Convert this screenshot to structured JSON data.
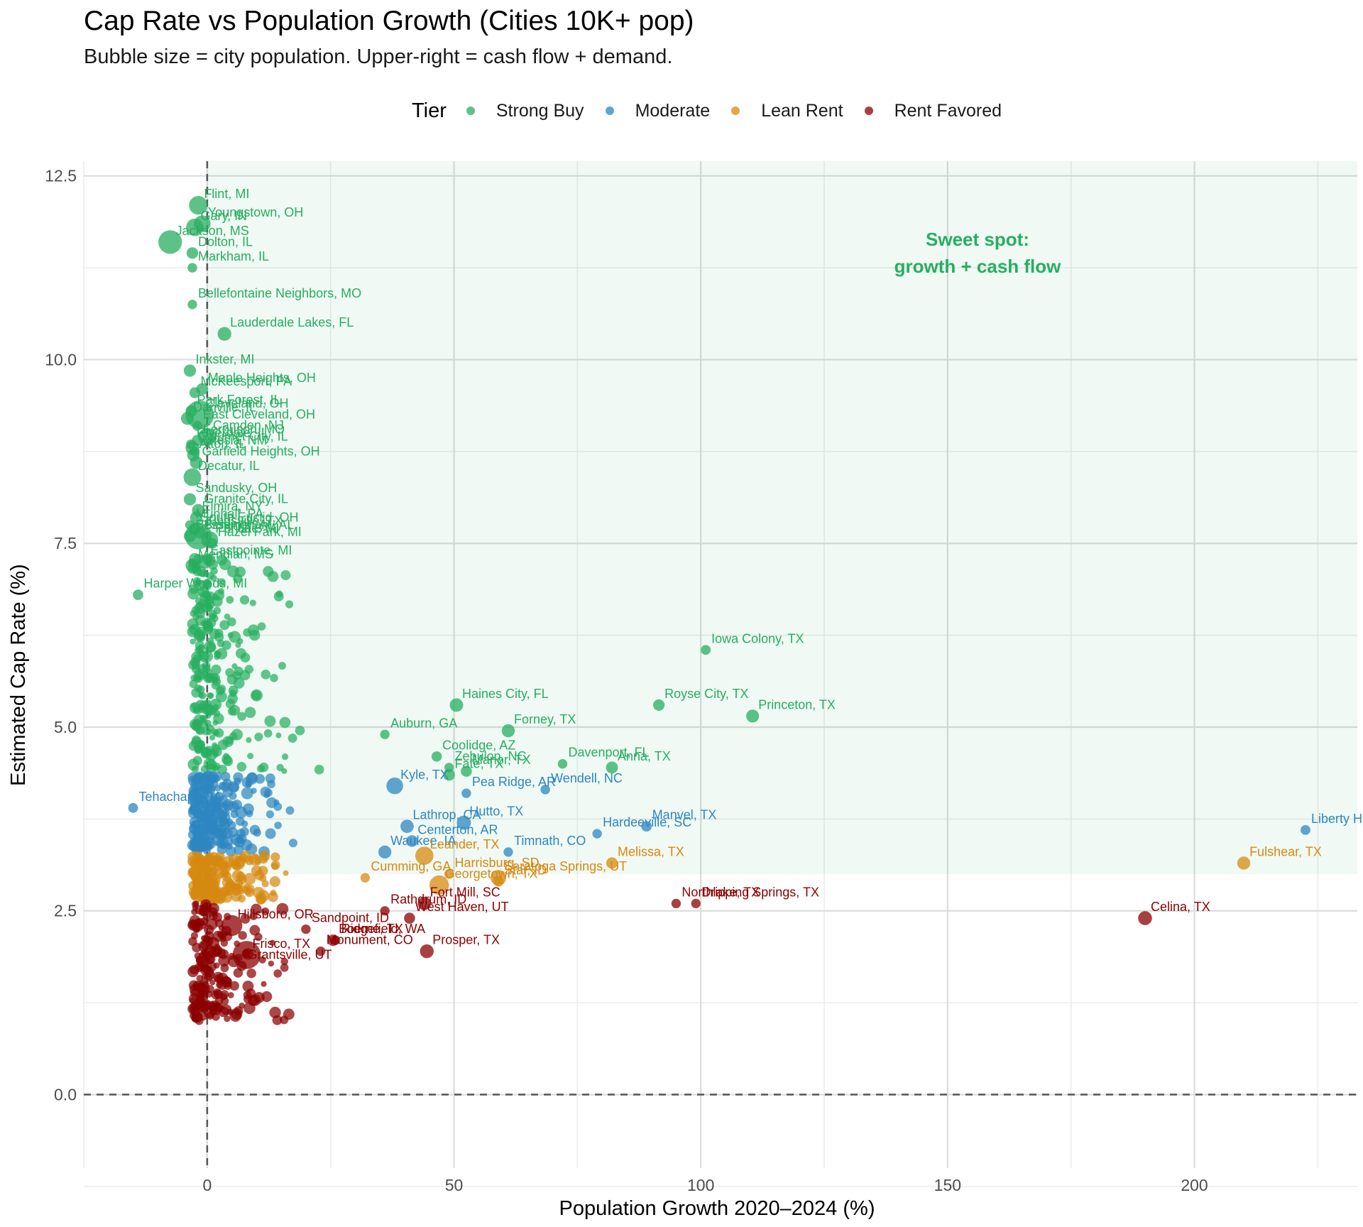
{
  "chart_data": {
    "type": "scatter",
    "title": "Cap Rate vs Population Growth (Cities 10K+ pop)",
    "subtitle": "Bubble size = city population. Upper-right = cash flow + demand.",
    "xlabel": "Population Growth 2020–2024 (%)",
    "ylabel": "Estimated Cap Rate (%)",
    "xlim": [
      -25,
      233
    ],
    "ylim": [
      -1.0,
      12.7
    ],
    "x_ticks": [
      0,
      50,
      100,
      150,
      200
    ],
    "y_ticks": [
      0.0,
      2.5,
      5.0,
      7.5,
      10.0,
      12.5
    ],
    "y_tick_labels": [
      "0.0",
      "2.5",
      "5.0",
      "7.5",
      "10.0",
      "12.5"
    ],
    "grid": true,
    "legend_position": "top",
    "legend_title": "Tier",
    "reference_lines": [
      {
        "axis": "x",
        "value": 0,
        "style": "dashed"
      },
      {
        "axis": "y",
        "value": 0,
        "style": "dashed"
      }
    ],
    "highlight_region": {
      "x": [
        0,
        233
      ],
      "y": [
        3.0,
        12.7
      ],
      "label": "Sweet spot:\ngrowth + cash flow",
      "color": "#27ae60"
    },
    "colors": {
      "Strong Buy": "#27ae60",
      "Moderate": "#2e86c1",
      "Lean Rent": "#d68910",
      "Rent Favored": "#8b0000"
    },
    "series": [
      {
        "name": "Strong Buy",
        "points": [
          {
            "label": "Flint, MI",
            "x": -1.8,
            "y": 12.1,
            "pop": 80000
          },
          {
            "label": "Youngstown, OH",
            "x": -1.0,
            "y": 11.85,
            "pop": 60000
          },
          {
            "label": "Gary, IN",
            "x": -2.5,
            "y": 11.8,
            "pop": 68000
          },
          {
            "label": "Jackson, MS",
            "x": -7.5,
            "y": 11.6,
            "pop": 145000
          },
          {
            "label": "Dolton, IL",
            "x": -3.0,
            "y": 11.45,
            "pop": 21000
          },
          {
            "label": "Markham, IL",
            "x": -3.0,
            "y": 11.25,
            "pop": 11000
          },
          {
            "label": "Bellefontaine Neighbors, MO",
            "x": -3.0,
            "y": 10.75,
            "pop": 10500
          },
          {
            "label": "Lauderdale Lakes, FL",
            "x": 3.5,
            "y": 10.35,
            "pop": 35000
          },
          {
            "label": "Inkster, MI",
            "x": -3.5,
            "y": 9.85,
            "pop": 25000
          },
          {
            "label": "McKeesport, PA",
            "x": -2.5,
            "y": 9.55,
            "pop": 17000
          },
          {
            "label": "Maple Heights, OH",
            "x": -1.0,
            "y": 9.6,
            "pop": 22000
          },
          {
            "label": "Park Forest, IL",
            "x": -3.2,
            "y": 9.3,
            "pop": 21000
          },
          {
            "label": "Cleveland, OH",
            "x": -1.5,
            "y": 9.25,
            "pop": 370000
          },
          {
            "label": "Danville, IL",
            "x": -4.0,
            "y": 9.2,
            "pop": 29000
          },
          {
            "label": "East Cleveland, OH",
            "x": -2.0,
            "y": 9.1,
            "pop": 13000
          },
          {
            "label": "Camden, NJ",
            "x": 0.0,
            "y": 8.95,
            "pop": 71000
          },
          {
            "label": "Riverdale, IL",
            "x": -3.3,
            "y": 8.85,
            "pop": 10500
          },
          {
            "label": "Ferguson, MO",
            "x": -2.0,
            "y": 8.9,
            "pop": 18000
          },
          {
            "label": "Artesia, NM",
            "x": -2.5,
            "y": 8.75,
            "pop": 12000
          },
          {
            "label": "Calumet City, IL",
            "x": -3.0,
            "y": 8.8,
            "pop": 35000
          },
          {
            "label": "Alton, IL",
            "x": -2.8,
            "y": 8.7,
            "pop": 26000
          },
          {
            "label": "Decatur, IL",
            "x": -3.0,
            "y": 8.4,
            "pop": 70000
          },
          {
            "label": "Garfield Heights, OH",
            "x": -2.2,
            "y": 8.6,
            "pop": 29000
          },
          {
            "label": "Sandusky, OH",
            "x": -3.5,
            "y": 8.1,
            "pop": 25000
          },
          {
            "label": "Granite City, IL",
            "x": -1.8,
            "y": 7.95,
            "pop": 27000
          },
          {
            "label": "Elmira, NY",
            "x": -2.2,
            "y": 7.85,
            "pop": 26000
          },
          {
            "label": "Munhall, PA",
            "x": -3.5,
            "y": 7.75,
            "pop": 10500
          },
          {
            "label": "South Euclid, OH",
            "x": -2.5,
            "y": 7.7,
            "pop": 21000
          },
          {
            "label": "Birmingham, AL",
            "x": -1.8,
            "y": 7.6,
            "pop": 196000
          },
          {
            "label": "Kingsville, TX",
            "x": -1.5,
            "y": 7.65,
            "pop": 25000
          },
          {
            "label": "Bessemer, AL",
            "x": -3.5,
            "y": 7.6,
            "pop": 25000
          },
          {
            "label": "Pontiac, MI",
            "x": 0.5,
            "y": 7.55,
            "pop": 61000
          },
          {
            "label": "Hazel Park, MI",
            "x": 1.0,
            "y": 7.5,
            "pop": 16000
          },
          {
            "label": "Meridian, MS",
            "x": -3.0,
            "y": 7.2,
            "pop": 34000
          },
          {
            "label": "Eastpointe, MI",
            "x": -0.5,
            "y": 7.25,
            "pop": 33000
          },
          {
            "label": "Harper Woods, MI",
            "x": -14.0,
            "y": 6.8,
            "pop": 15000
          },
          {
            "label": "Iowa Colony, TX",
            "x": 101.0,
            "y": 6.05,
            "pop": 12000
          },
          {
            "label": "Haines City, FL",
            "x": 50.5,
            "y": 5.3,
            "pop": 33000
          },
          {
            "label": "Royse City, TX",
            "x": 91.5,
            "y": 5.3,
            "pop": 20000
          },
          {
            "label": "Princeton, TX",
            "x": 110.5,
            "y": 5.15,
            "pop": 29000
          },
          {
            "label": "Auburn, GA",
            "x": 36.0,
            "y": 4.9,
            "pop": 10500
          },
          {
            "label": "Forney, TX",
            "x": 61.0,
            "y": 4.95,
            "pop": 30000
          },
          {
            "label": "Coolidge, AZ",
            "x": 46.5,
            "y": 4.6,
            "pop": 14000
          },
          {
            "label": "Zebulon, NC",
            "x": 49.0,
            "y": 4.45,
            "pop": 10500
          },
          {
            "label": "Davenport, FL",
            "x": 72.0,
            "y": 4.5,
            "pop": 11000
          },
          {
            "label": "Fate, TX",
            "x": 49.0,
            "y": 4.35,
            "pop": 22000
          },
          {
            "label": "Manor, TX",
            "x": 52.5,
            "y": 4.4,
            "pop": 18000
          },
          {
            "label": "Anna, TX",
            "x": 82.0,
            "y": 4.45,
            "pop": 23000
          }
        ]
      },
      {
        "name": "Moderate",
        "points": [
          {
            "label": "Liberty Hill, TX",
            "x": 222.5,
            "y": 3.6,
            "pop": 12000
          },
          {
            "label": "Pea Ridge, AR",
            "x": 52.5,
            "y": 4.1,
            "pop": 10500
          },
          {
            "label": "Kyle, TX",
            "x": 38.0,
            "y": 4.2,
            "pop": 60000
          },
          {
            "label": "Wendell, NC",
            "x": 68.5,
            "y": 4.15,
            "pop": 11000
          },
          {
            "label": "Tehachapi, CA",
            "x": -15.0,
            "y": 3.9,
            "pop": 12000
          },
          {
            "label": "Lathrop, CA",
            "x": 40.5,
            "y": 3.65,
            "pop": 32000
          },
          {
            "label": "Hutto, TX",
            "x": 52.0,
            "y": 3.7,
            "pop": 38000
          },
          {
            "label": "Manvel, TX",
            "x": 89.0,
            "y": 3.65,
            "pop": 15000
          },
          {
            "label": "Hardeeville, SC",
            "x": 79.0,
            "y": 3.55,
            "pop": 10500
          },
          {
            "label": "Centerton, AR",
            "x": 41.5,
            "y": 3.45,
            "pop": 21000
          },
          {
            "label": "Waukee, IA",
            "x": 36.0,
            "y": 3.3,
            "pop": 30000
          },
          {
            "label": "Timnath, CO",
            "x": 61.0,
            "y": 3.3,
            "pop": 10500
          }
        ]
      },
      {
        "name": "Lean Rent",
        "points": [
          {
            "label": "Fulshear, TX",
            "x": 210.0,
            "y": 3.15,
            "pop": 30000
          },
          {
            "label": "Leander, TX",
            "x": 44.0,
            "y": 3.25,
            "pop": 75000
          },
          {
            "label": "Harrisburg, SD",
            "x": 49.0,
            "y": 3.0,
            "pop": 10500
          },
          {
            "label": "Saratoga Springs, UT",
            "x": 59.0,
            "y": 2.95,
            "pop": 50000
          },
          {
            "label": "Cumming, GA",
            "x": 32.0,
            "y": 2.95,
            "pop": 10500
          },
          {
            "label": "Melissa, TX",
            "x": 82.0,
            "y": 3.15,
            "pop": 20000
          },
          {
            "label": "Star, ID",
            "x": 59.0,
            "y": 2.9,
            "pop": 15000
          },
          {
            "label": "Georgetown, TX",
            "x": 47.0,
            "y": 2.85,
            "pop": 90000
          }
        ]
      },
      {
        "name": "Rent Favored",
        "points": [
          {
            "label": "Celina, TX",
            "x": 190.0,
            "y": 2.4,
            "pop": 36000
          },
          {
            "label": "Northlake, TX",
            "x": 95.0,
            "y": 2.6,
            "pop": 10500
          },
          {
            "label": "Dripping Springs, TX",
            "x": 99.0,
            "y": 2.6,
            "pop": 10500
          },
          {
            "label": "Rathdrum, ID",
            "x": 36.0,
            "y": 2.5,
            "pop": 10500
          },
          {
            "label": "Fort Mill, SC",
            "x": 44.0,
            "y": 2.6,
            "pop": 32000
          },
          {
            "label": "Sandpoint, ID",
            "x": 20.0,
            "y": 2.25,
            "pop": 10500
          },
          {
            "label": "West Haven, UT",
            "x": 41.0,
            "y": 2.4,
            "pop": 18000
          },
          {
            "label": "Ridgefield, WA",
            "x": 26.0,
            "y": 2.1,
            "pop": 11000
          },
          {
            "label": "Frisco, TX",
            "x": 8.0,
            "y": 1.9,
            "pop": 220000
          },
          {
            "label": "Prosper, TX",
            "x": 44.5,
            "y": 1.95,
            "pop": 35000
          },
          {
            "label": "Monument, CO",
            "x": 23.0,
            "y": 1.95,
            "pop": 10500
          },
          {
            "label": "Grantsville, UT",
            "x": 7.0,
            "y": 1.75,
            "pop": 13000
          },
          {
            "label": "Boerne, TX",
            "x": 25.5,
            "y": 2.1,
            "pop": 20000
          },
          {
            "label": "Hillsboro, OR",
            "x": 5.0,
            "y": 2.3,
            "pop": 107000
          }
        ]
      }
    ]
  }
}
